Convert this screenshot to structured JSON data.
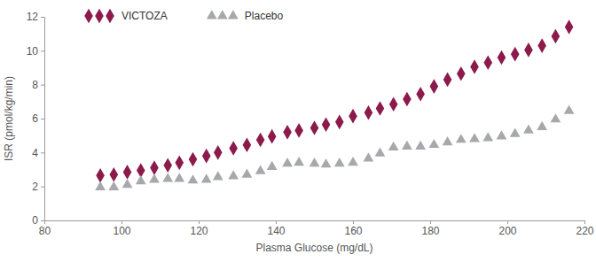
{
  "chart_data": {
    "type": "scatter",
    "x_label": "Plasma Glucose (mg/dL)",
    "y_label": "ISR (pmol/kg/min)",
    "x": [
      94.5,
      98,
      101.5,
      105,
      108.5,
      112,
      115,
      118.5,
      122,
      125,
      129,
      132.5,
      136,
      139,
      143,
      146,
      150,
      153,
      156.5,
      160,
      164,
      167,
      170.5,
      174,
      177.5,
      181,
      184.5,
      188,
      191.5,
      195,
      198.5,
      202,
      205.5,
      209,
      212.5,
      216
    ],
    "series": [
      {
        "name": "VICTOZA",
        "color": "#8c1a4b",
        "marker": "diamond",
        "values": [
          2.65,
          2.7,
          2.85,
          2.95,
          3.1,
          3.25,
          3.4,
          3.6,
          3.8,
          4.0,
          4.25,
          4.45,
          4.75,
          4.95,
          5.2,
          5.3,
          5.45,
          5.65,
          5.8,
          6.15,
          6.35,
          6.6,
          6.85,
          7.15,
          7.45,
          7.9,
          8.3,
          8.65,
          9.05,
          9.3,
          9.6,
          9.8,
          10.05,
          10.3,
          10.85,
          11.4
        ]
      },
      {
        "name": "Placebo",
        "color": "#a6a8ab",
        "marker": "triangle",
        "values": [
          1.95,
          1.95,
          2.1,
          2.3,
          2.4,
          2.45,
          2.45,
          2.35,
          2.4,
          2.55,
          2.6,
          2.7,
          2.9,
          3.15,
          3.35,
          3.4,
          3.35,
          3.3,
          3.35,
          3.4,
          3.65,
          3.95,
          4.3,
          4.35,
          4.35,
          4.45,
          4.6,
          4.75,
          4.8,
          4.85,
          4.95,
          5.1,
          5.3,
          5.5,
          5.95,
          6.45
        ]
      }
    ],
    "xlim": [
      80,
      220
    ],
    "xticks": [
      80,
      100,
      120,
      140,
      160,
      180,
      200,
      220
    ],
    "ylim": [
      0,
      12
    ],
    "yticks": [
      0,
      2,
      4,
      6,
      8,
      10,
      12
    ],
    "legend": "upper left",
    "grid": false
  }
}
